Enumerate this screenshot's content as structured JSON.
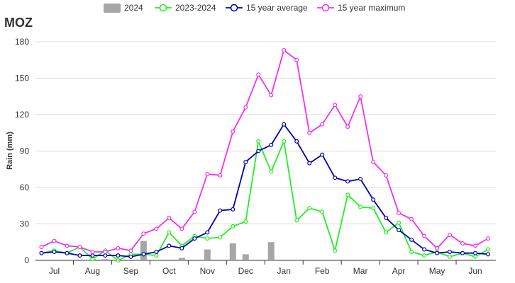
{
  "chart_data": {
    "type": "line",
    "title": "MOZ",
    "xlabel": "",
    "ylabel": "Rain (mm)",
    "ylim": [
      0,
      180
    ],
    "yticks": [
      0,
      30,
      60,
      90,
      120,
      150,
      180
    ],
    "month_labels": [
      "Jul",
      "Aug",
      "Sep",
      "Oct",
      "Nov",
      "Dec",
      "Jan",
      "Feb",
      "Mar",
      "Apr",
      "May",
      "Jun"
    ],
    "grid": true,
    "legend_position": "top",
    "series": [
      {
        "name": "2024",
        "kind": "bar",
        "color": "#a6a6a6",
        "values": [
          0,
          0,
          1,
          1,
          0,
          16,
          0,
          2,
          9,
          14,
          5,
          15
        ]
      },
      {
        "name": "2023-2024",
        "kind": "line",
        "color": "#22ee22",
        "values": [
          6,
          8,
          6,
          11,
          1,
          8,
          0,
          5,
          5,
          4,
          23,
          12,
          20,
          18,
          19,
          28,
          32,
          98,
          73,
          98,
          33,
          43,
          40,
          8,
          54,
          44,
          43,
          23,
          31,
          7,
          4,
          7,
          3,
          6,
          3,
          9
        ]
      },
      {
        "name": "15 year average",
        "kind": "line",
        "color": "#0000aa",
        "values": [
          6,
          7,
          6,
          4,
          4,
          4,
          4,
          3,
          5,
          7,
          12,
          10,
          18,
          23,
          41,
          42,
          81,
          90,
          95,
          112,
          98,
          80,
          87,
          68,
          65,
          67,
          50,
          35,
          25,
          17,
          9,
          6,
          7,
          6,
          6,
          5
        ]
      },
      {
        "name": "15 year maximum",
        "kind": "line",
        "color": "#ee33ee",
        "values": [
          11,
          16,
          12,
          11,
          7,
          7,
          10,
          8,
          22,
          26,
          35,
          26,
          40,
          71,
          70,
          106,
          126,
          153,
          136,
          173,
          165,
          105,
          112,
          128,
          110,
          135,
          81,
          70,
          39,
          34,
          20,
          10,
          21,
          14,
          12,
          18
        ]
      }
    ]
  }
}
